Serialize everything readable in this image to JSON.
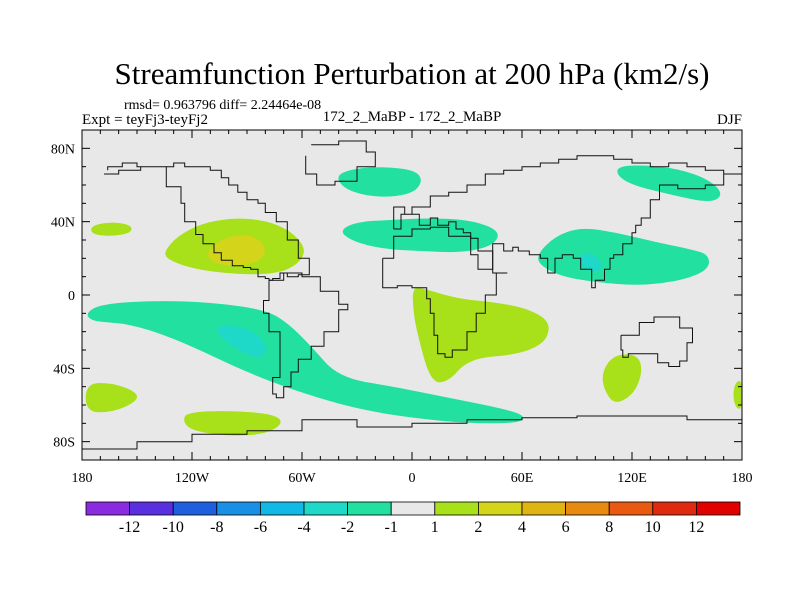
{
  "chart_data": {
    "type": "heatmap",
    "title": "Streamfunction Perturbation at 200 hPa (km2/s)",
    "stats": "rmsd= 0.963796 diff= 2.24464e-08",
    "expt": "Expt = teyFj3-teyFj2",
    "case": "172_2_MaBP - 172_2_MaBP",
    "season": "DJF",
    "xlim": [
      -180,
      180
    ],
    "ylim": [
      -90,
      90
    ],
    "x_ticks": [
      {
        "value": -180,
        "label": "180"
      },
      {
        "value": -120,
        "label": "120W"
      },
      {
        "value": -60,
        "label": "60W"
      },
      {
        "value": 0,
        "label": "0"
      },
      {
        "value": 60,
        "label": "60E"
      },
      {
        "value": 120,
        "label": "120E"
      },
      {
        "value": 180,
        "label": "180"
      }
    ],
    "y_ticks": [
      {
        "value": 80,
        "label": "80N"
      },
      {
        "value": 40,
        "label": "40N"
      },
      {
        "value": 0,
        "label": "0"
      },
      {
        "value": -40,
        "label": "40S"
      },
      {
        "value": -80,
        "label": "80S"
      }
    ],
    "colorbar": {
      "colors": [
        "#8a2be2",
        "#5a2fe0",
        "#1e5fe0",
        "#1a8fe6",
        "#12b8e6",
        "#1ed8c8",
        "#22e0a0",
        "#e8e8e8",
        "#a8e01a",
        "#d4d41a",
        "#e0b412",
        "#e88a12",
        "#e85a12",
        "#e02a10",
        "#e00000"
      ],
      "labels": [
        "-12",
        "-10",
        "-8",
        "-6",
        "-4",
        "-2",
        "-1",
        "1",
        "2",
        "4",
        "6",
        "8",
        "10",
        "12"
      ]
    },
    "regions": [
      {
        "name": "north-pacific-anomaly",
        "color": "#a8e01a",
        "lon": [
          -135,
          -128,
          -115,
          -98,
          -82,
          -70,
          -62,
          -58,
          -62,
          -72,
          -90,
          -112,
          -125,
          -134
        ],
        "lat": [
          24,
          32,
          39,
          42,
          41,
          37,
          31,
          24,
          17,
          12,
          11,
          13,
          16,
          20
        ]
      },
      {
        "name": "north-pacific-core",
        "color": "#d4d41a",
        "lon": [
          -112,
          -103,
          -92,
          -84,
          -79,
          -84,
          -96,
          -110
        ],
        "lat": [
          24,
          31,
          33,
          31,
          24,
          18,
          15,
          18
        ]
      },
      {
        "name": "north-atlantic-anomaly",
        "color": "#22e0a0",
        "lon": [
          -40,
          -30,
          -10,
          10,
          30,
          44,
          48,
          42,
          25,
          5,
          -15,
          -32
        ],
        "lat": [
          35,
          40,
          41,
          42,
          41,
          37,
          32,
          26,
          23,
          24,
          25,
          29
        ]
      },
      {
        "name": "arctic-europe-anomaly",
        "color": "#22e0a0",
        "lon": [
          -42,
          -32,
          -15,
          2,
          6,
          0,
          -18,
          -36
        ],
        "lat": [
          65,
          69,
          70,
          68,
          62,
          55,
          53,
          57
        ]
      },
      {
        "name": "asia-anomaly",
        "color": "#22e0a0",
        "lon": [
          68,
          78,
          92,
          112,
          132,
          152,
          162,
          162,
          148,
          124,
          100,
          82,
          70
        ],
        "lat": [
          22,
          32,
          37,
          34,
          29,
          25,
          22,
          14,
          8,
          5,
          7,
          10,
          16
        ]
      },
      {
        "name": "asia-core",
        "color": "#1ed8c8",
        "lon": [
          90,
          96,
          102,
          104,
          100,
          93
        ],
        "lat": [
          20,
          24,
          20,
          15,
          12,
          15
        ]
      },
      {
        "name": "siberia-anomaly",
        "color": "#22e0a0",
        "lon": [
          112,
          125,
          145,
          162,
          170,
          163,
          140,
          120,
          112
        ],
        "lat": [
          70,
          71,
          69,
          63,
          55,
          50,
          55,
          60,
          65
        ]
      },
      {
        "name": "africa-anomaly",
        "color": "#a8e01a",
        "lon": [
          0,
          8,
          25,
          45,
          62,
          75,
          74,
          65,
          52,
          38,
          28,
          22,
          16,
          12,
          8,
          4,
          1
        ],
        "lat": [
          5,
          3,
          -2,
          -4,
          -7,
          -14,
          -24,
          -30,
          -33,
          -34,
          -38,
          -45,
          -48,
          -47,
          -40,
          -25,
          -12
        ]
      },
      {
        "name": "south-pacific-band",
        "color": "#22e0a0",
        "lon": [
          -178,
          -170,
          -140,
          -110,
          -80,
          -68,
          -55,
          -40,
          -10,
          20,
          50,
          62,
          58,
          30,
          0,
          -25,
          -45,
          -70,
          -95,
          -120,
          -140,
          -155,
          -165,
          -175
        ],
        "lat": [
          -10,
          -5,
          -3,
          -4,
          -8,
          -15,
          -28,
          -45,
          -50,
          -56,
          -62,
          -66,
          -70,
          -70,
          -67,
          -63,
          -58,
          -50,
          -40,
          -28,
          -20,
          -16,
          -15,
          -14
        ]
      },
      {
        "name": "south-pacific-core",
        "color": "#1ed8c8",
        "lon": [
          -108,
          -98,
          -84,
          -78,
          -84,
          -95,
          -103
        ],
        "lat": [
          -18,
          -16,
          -21,
          -30,
          -35,
          -30,
          -24
        ]
      },
      {
        "name": "southwest-pacific-anomaly",
        "color": "#a8e01a",
        "lon": [
          -178,
          -163,
          -150,
          -150,
          -163,
          -178
        ],
        "lat": [
          -48,
          -48,
          -53,
          -58,
          -64,
          -64
        ]
      },
      {
        "name": "southern-ocean-anomaly",
        "color": "#a8e01a",
        "lon": [
          -123,
          -100,
          -75,
          -70,
          -80,
          -100,
          -120,
          -125
        ],
        "lat": [
          -64,
          -63,
          -65,
          -70,
          -76,
          -77,
          -74,
          -69
        ]
      },
      {
        "name": "indian-ocean-anomaly",
        "color": "#a8e01a",
        "lon": [
          104,
          110,
          120,
          125,
          125,
          120,
          110,
          104
        ],
        "lat": [
          -41,
          -33,
          -32,
          -36,
          -45,
          -55,
          -60,
          -50
        ]
      },
      {
        "name": "south-atlantic-east-anomaly",
        "color": "#a8e01a",
        "lon": [
          176,
          180,
          180,
          177,
          175
        ],
        "lat": [
          -48,
          -46,
          -62,
          -62,
          -56
        ]
      },
      {
        "name": "pacific-island-anomaly",
        "color": "#a8e01a",
        "lon": [
          -175,
          -163,
          -153,
          -153,
          -163,
          -175
        ],
        "lat": [
          38,
          40,
          38,
          34,
          32,
          33
        ]
      }
    ],
    "coastlines": [
      {
        "name": "north-america",
        "lon": [
          -168,
          -160,
          -148,
          -140,
          -134,
          -126,
          -124,
          -118,
          -114,
          -108,
          -104,
          -98,
          -95,
          -92,
          -88,
          -84,
          -80,
          -78,
          -76,
          -72,
          -68,
          -62,
          -56,
          -56,
          -62,
          -68,
          -74,
          -80,
          -84,
          -90,
          -95,
          -100,
          -104,
          -110,
          -118,
          -124,
          -130,
          -140,
          -150,
          -158,
          -166
        ],
        "lat": [
          66,
          68,
          70,
          70,
          59,
          50,
          40,
          33,
          28,
          23,
          19,
          16,
          16,
          15,
          14,
          10,
          9,
          8,
          9,
          12,
          10,
          11,
          14,
          20,
          30,
          40,
          45,
          50,
          52,
          56,
          60,
          64,
          68,
          70,
          70,
          72,
          70,
          70,
          72,
          70,
          68
        ]
      },
      {
        "name": "south-america",
        "lon": [
          -78,
          -70,
          -60,
          -50,
          -40,
          -35,
          -40,
          -48,
          -55,
          -62,
          -66,
          -70,
          -74,
          -76,
          -72,
          -72,
          -78,
          -81,
          -78
        ],
        "lat": [
          8,
          12,
          10,
          2,
          -5,
          -8,
          -20,
          -28,
          -35,
          -42,
          -50,
          -56,
          -54,
          -45,
          -35,
          -20,
          -10,
          -3,
          8
        ]
      },
      {
        "name": "greenland",
        "lon": [
          -55,
          -40,
          -25,
          -20,
          -30,
          -42,
          -52,
          -58
        ],
        "lat": [
          82,
          84,
          78,
          70,
          62,
          60,
          66,
          76
        ]
      },
      {
        "name": "africa",
        "lon": [
          -16,
          -10,
          0,
          10,
          20,
          32,
          36,
          44,
          52,
          46,
          40,
          35,
          30,
          22,
          18,
          14,
          12,
          10,
          8,
          0,
          -8,
          -16,
          -16
        ],
        "lat": [
          20,
          32,
          36,
          37,
          32,
          31,
          24,
          12,
          12,
          0,
          -10,
          -20,
          -30,
          -34,
          -32,
          -22,
          -10,
          -2,
          4,
          5,
          4,
          12,
          20
        ]
      },
      {
        "name": "eurasia",
        "lon": [
          -10,
          -6,
          0,
          10,
          20,
          30,
          40,
          50,
          60,
          70,
          80,
          90,
          100,
          110,
          120,
          130,
          140,
          150,
          160,
          170,
          180,
          170,
          160,
          145,
          135,
          130,
          125,
          122,
          120,
          115,
          110,
          108,
          105,
          100,
          98,
          92,
          88,
          82,
          78,
          74,
          70,
          64,
          58,
          55,
          50,
          44,
          36,
          32,
          28,
          24,
          20,
          14,
          10,
          4,
          -4,
          -10
        ],
        "lat": [
          36,
          44,
          48,
          54,
          56,
          60,
          66,
          68,
          70,
          72,
          74,
          76,
          76,
          74,
          72,
          70,
          72,
          70,
          68,
          66,
          66,
          60,
          58,
          60,
          52,
          42,
          38,
          34,
          28,
          22,
          20,
          14,
          8,
          4,
          14,
          20,
          22,
          20,
          12,
          20,
          22,
          24,
          26,
          24,
          28,
          14,
          22,
          34,
          36,
          40,
          38,
          42,
          38,
          44,
          48,
          36
        ]
      },
      {
        "name": "australia",
        "lon": [
          114,
          124,
          132,
          138,
          146,
          153,
          150,
          146,
          140,
          134,
          128,
          118,
          115,
          114
        ],
        "lat": [
          -22,
          -15,
          -12,
          -12,
          -18,
          -26,
          -36,
          -39,
          -37,
          -32,
          -32,
          -34,
          -30,
          -22
        ]
      },
      {
        "name": "antarctica",
        "lon": [
          -180,
          -150,
          -120,
          -90,
          -60,
          -30,
          0,
          30,
          60,
          90,
          120,
          150,
          180
        ],
        "lat": [
          -84,
          -80,
          -76,
          -74,
          -68,
          -72,
          -70,
          -68,
          -67,
          -66,
          -66,
          -68,
          -76
        ]
      }
    ]
  }
}
